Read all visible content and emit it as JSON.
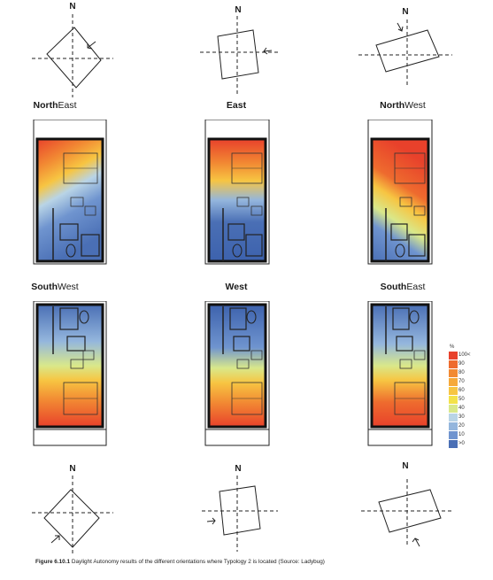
{
  "compass_label": "N",
  "orientations": [
    {
      "first": "North",
      "second": "East"
    },
    {
      "first": "",
      "second": "East"
    },
    {
      "first": "North",
      "second": "West"
    },
    {
      "first": "South",
      "second": "West"
    },
    {
      "first": "",
      "second": "West"
    },
    {
      "first": "South",
      "second": "East"
    }
  ],
  "legend": {
    "unit": "%",
    "items": [
      {
        "label": "100<",
        "color": "#e8412b"
      },
      {
        "label": "90",
        "color": "#ee6b2e"
      },
      {
        "label": "80",
        "color": "#f28a33"
      },
      {
        "label": "70",
        "color": "#f6a93a"
      },
      {
        "label": "60",
        "color": "#f7c542"
      },
      {
        "label": "50",
        "color": "#f3e24a"
      },
      {
        "label": "40",
        "color": "#d9e88a"
      },
      {
        "label": "30",
        "color": "#b9d4e6"
      },
      {
        "label": "20",
        "color": "#94b6dd"
      },
      {
        "label": "10",
        "color": "#6f94cf"
      },
      {
        "label": ">0",
        "color": "#4a6fb5"
      }
    ]
  },
  "caption": {
    "bold": "Figure 6.10.1",
    "text": " Daylight Autonomy results of the different orientations where Typology 2 is located (Source: Ladybug)"
  }
}
